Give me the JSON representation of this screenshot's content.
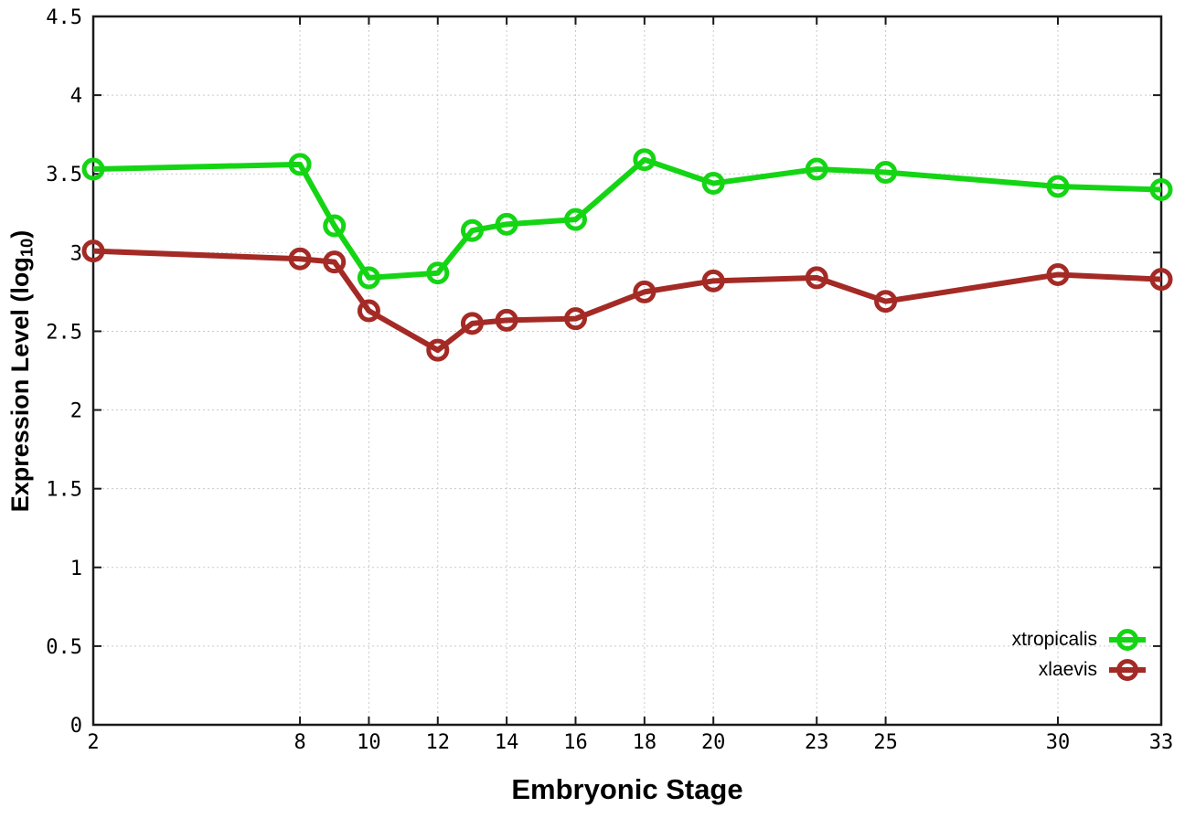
{
  "chart_data": {
    "type": "line",
    "title": "",
    "xlabel": "Embryonic Stage",
    "ylabel": "Expression Level (log10)",
    "xlim": [
      2,
      33
    ],
    "ylim": [
      0,
      4.5
    ],
    "xticks": [
      2,
      8,
      10,
      12,
      14,
      16,
      18,
      20,
      23,
      25,
      30,
      33
    ],
    "yticks": [
      0,
      0.5,
      1,
      1.5,
      2,
      2.5,
      3,
      3.5,
      4,
      4.5
    ],
    "grid": true,
    "legend_position": "inside-bottom-right",
    "x": [
      2,
      8,
      9,
      10,
      12,
      13,
      14,
      16,
      18,
      20,
      23,
      25,
      30,
      33
    ],
    "series": [
      {
        "name": "xtropicalis",
        "color": "#14d514",
        "values": [
          3.53,
          3.56,
          3.17,
          2.84,
          2.87,
          3.14,
          3.18,
          3.21,
          3.59,
          3.44,
          3.53,
          3.51,
          3.42,
          3.4
        ]
      },
      {
        "name": "xlaevis",
        "color": "#a42a25",
        "values": [
          3.01,
          2.96,
          2.94,
          2.63,
          2.38,
          2.55,
          2.57,
          2.58,
          2.75,
          2.82,
          2.84,
          2.69,
          2.86,
          2.83
        ]
      }
    ]
  },
  "axes": {
    "x_title": "Embryonic Stage",
    "y_title_main": "Expression Level (log",
    "y_title_sub": "10",
    "y_title_close": ")"
  },
  "legend": {
    "items": [
      {
        "label": "xtropicalis"
      },
      {
        "label": "xlaevis"
      }
    ]
  },
  "colors": {
    "background": "#ffffff",
    "axis": "#1a1a1a",
    "grid": "#c9c9c9",
    "text": "#000000"
  }
}
